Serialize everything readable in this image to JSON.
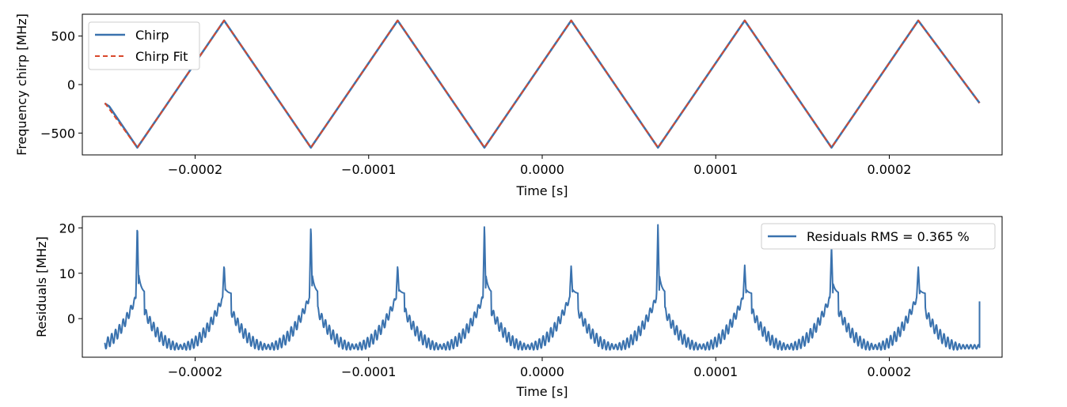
{
  "chart_data": [
    {
      "type": "line",
      "xlabel": "Time [s]",
      "ylabel": "Frequency chirp [MHz]",
      "xlim": [
        -0.000265,
        0.000265
      ],
      "ylim": [
        -725,
        725
      ],
      "x_ticks": [
        -0.0002,
        -0.0001,
        0.0,
        0.0001,
        0.0002
      ],
      "x_tick_labels": [
        "−0.0002",
        "−0.0001",
        "0.0000",
        "0.0001",
        "0.0002"
      ],
      "y_ticks": [
        -500,
        0,
        500
      ],
      "y_tick_labels": [
        "−500",
        "0",
        "500"
      ],
      "legend_position": "upper-left",
      "grid": false,
      "series": [
        {
          "name": "Chirp",
          "color": "#3a72ae",
          "style": "solid",
          "x": [
            -0.000252,
            -0.0002495,
            -0.0002333,
            -0.0001833,
            -0.0001333,
            -8.33e-05,
            -3.33e-05,
            1.67e-05,
            6.67e-05,
            0.0001167,
            0.0001667,
            0.0002167,
            0.000252
          ],
          "y": [
            -195,
            -225,
            -650,
            660,
            -650,
            660,
            -650,
            660,
            -650,
            660,
            -650,
            660,
            -190
          ]
        },
        {
          "name": "Chirp Fit",
          "color": "#d9482b",
          "style": "dashed",
          "x": [
            -0.000252,
            -0.0002333,
            -0.0001833,
            -0.0001333,
            -8.33e-05,
            -3.33e-05,
            1.67e-05,
            6.67e-05,
            0.0001167,
            0.0001667,
            0.0002167,
            0.000252
          ],
          "y": [
            -190,
            -650,
            660,
            -650,
            660,
            -650,
            660,
            -650,
            660,
            -650,
            660,
            -190
          ]
        }
      ]
    },
    {
      "type": "line",
      "xlabel": "Time [s]",
      "ylabel": "Residuals [MHz]",
      "xlim": [
        -0.000265,
        0.000265
      ],
      "ylim": [
        -8.5,
        22.5
      ],
      "x_ticks": [
        -0.0002,
        -0.0001,
        0.0,
        0.0001,
        0.0002
      ],
      "x_tick_labels": [
        "−0.0002",
        "−0.0001",
        "0.0000",
        "0.0001",
        "0.0002"
      ],
      "y_ticks": [
        0,
        10,
        20
      ],
      "y_tick_labels": [
        "0",
        "10",
        "20"
      ],
      "legend_position": "upper-right",
      "grid": false,
      "series": [
        {
          "name": "Residuals RMS = 0.365 %",
          "color": "#3a72ae",
          "style": "solid",
          "period": 5e-05,
          "segments": [
            {
              "type": "edge",
              "x_start": -0.000252
            },
            {
              "type": "peak",
              "x": -0.0002333,
              "height": 21.2
            },
            {
              "type": "trough",
              "x": -0.0002083
            },
            {
              "type": "peak",
              "x": -0.0001833,
              "height": 12.0
            },
            {
              "type": "trough",
              "x": -0.0001583
            },
            {
              "type": "peak",
              "x": -0.0001333,
              "height": 21.0
            },
            {
              "type": "trough",
              "x": -0.0001083
            },
            {
              "type": "peak",
              "x": -8.33e-05,
              "height": 11.8
            },
            {
              "type": "trough",
              "x": -5.83e-05
            },
            {
              "type": "peak",
              "x": -3.33e-05,
              "height": 21.0
            },
            {
              "type": "trough",
              "x": -8.3e-06
            },
            {
              "type": "peak",
              "x": 1.67e-05,
              "height": 11.8
            },
            {
              "type": "trough",
              "x": 4.17e-05
            },
            {
              "type": "peak",
              "x": 6.67e-05,
              "height": 21.0
            },
            {
              "type": "trough",
              "x": 9.17e-05
            },
            {
              "type": "peak",
              "x": 0.0001167,
              "height": 11.8
            },
            {
              "type": "trough",
              "x": 0.0001417
            },
            {
              "type": "peak",
              "x": 0.0001667,
              "height": 16.0
            },
            {
              "type": "trough",
              "x": 0.0001917
            },
            {
              "type": "peak",
              "x": 0.0002167,
              "height": 11.5
            },
            {
              "type": "edge",
              "x_end": 0.000252,
              "y_end": 3.8
            }
          ],
          "trough_value": -6.2,
          "peak_base_value": 5.5,
          "ripple_amplitude": 1.3
        }
      ]
    }
  ]
}
